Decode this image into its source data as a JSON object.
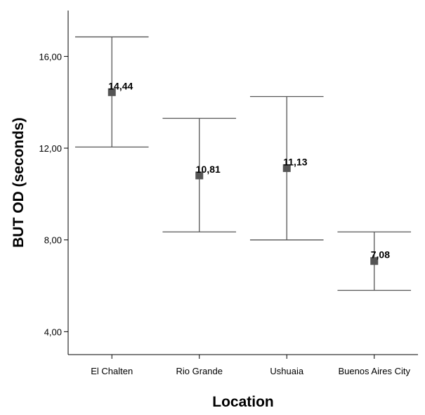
{
  "chart_data": {
    "type": "errorbar",
    "categories": [
      "El Chalten",
      "Rio Grande",
      "Ushuaia",
      "Buenos Aires City"
    ],
    "series": [
      {
        "means": [
          14.44,
          10.81,
          11.13,
          7.08
        ],
        "mean_labels": [
          "14,44",
          "10,81",
          "11,13",
          "7,08"
        ],
        "upper": [
          16.85,
          13.3,
          14.25,
          8.35
        ],
        "lower": [
          12.05,
          8.35,
          8.0,
          5.8
        ]
      }
    ],
    "xlabel": "Location",
    "ylabel": "BUT OD (seconds)",
    "ylim": [
      3.0,
      18.0
    ],
    "yticks": [
      4,
      8,
      12,
      16
    ],
    "ytick_labels": [
      "4,00",
      "8,00",
      "12,00",
      "16,00"
    ],
    "grid": false,
    "colors": {
      "marker": "#555555",
      "error_bar": "#555555",
      "axis": "#000000"
    }
  }
}
